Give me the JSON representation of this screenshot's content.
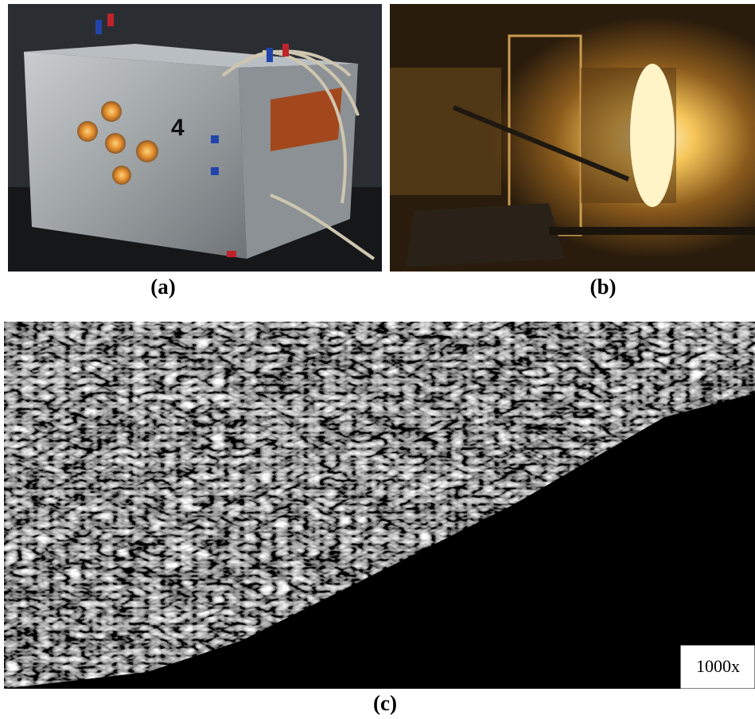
{
  "panels": [
    {
      "label": "(a)",
      "marking": "4"
    },
    {
      "label": "(b)"
    },
    {
      "label": "(c)",
      "scale_label": "1000x"
    }
  ]
}
